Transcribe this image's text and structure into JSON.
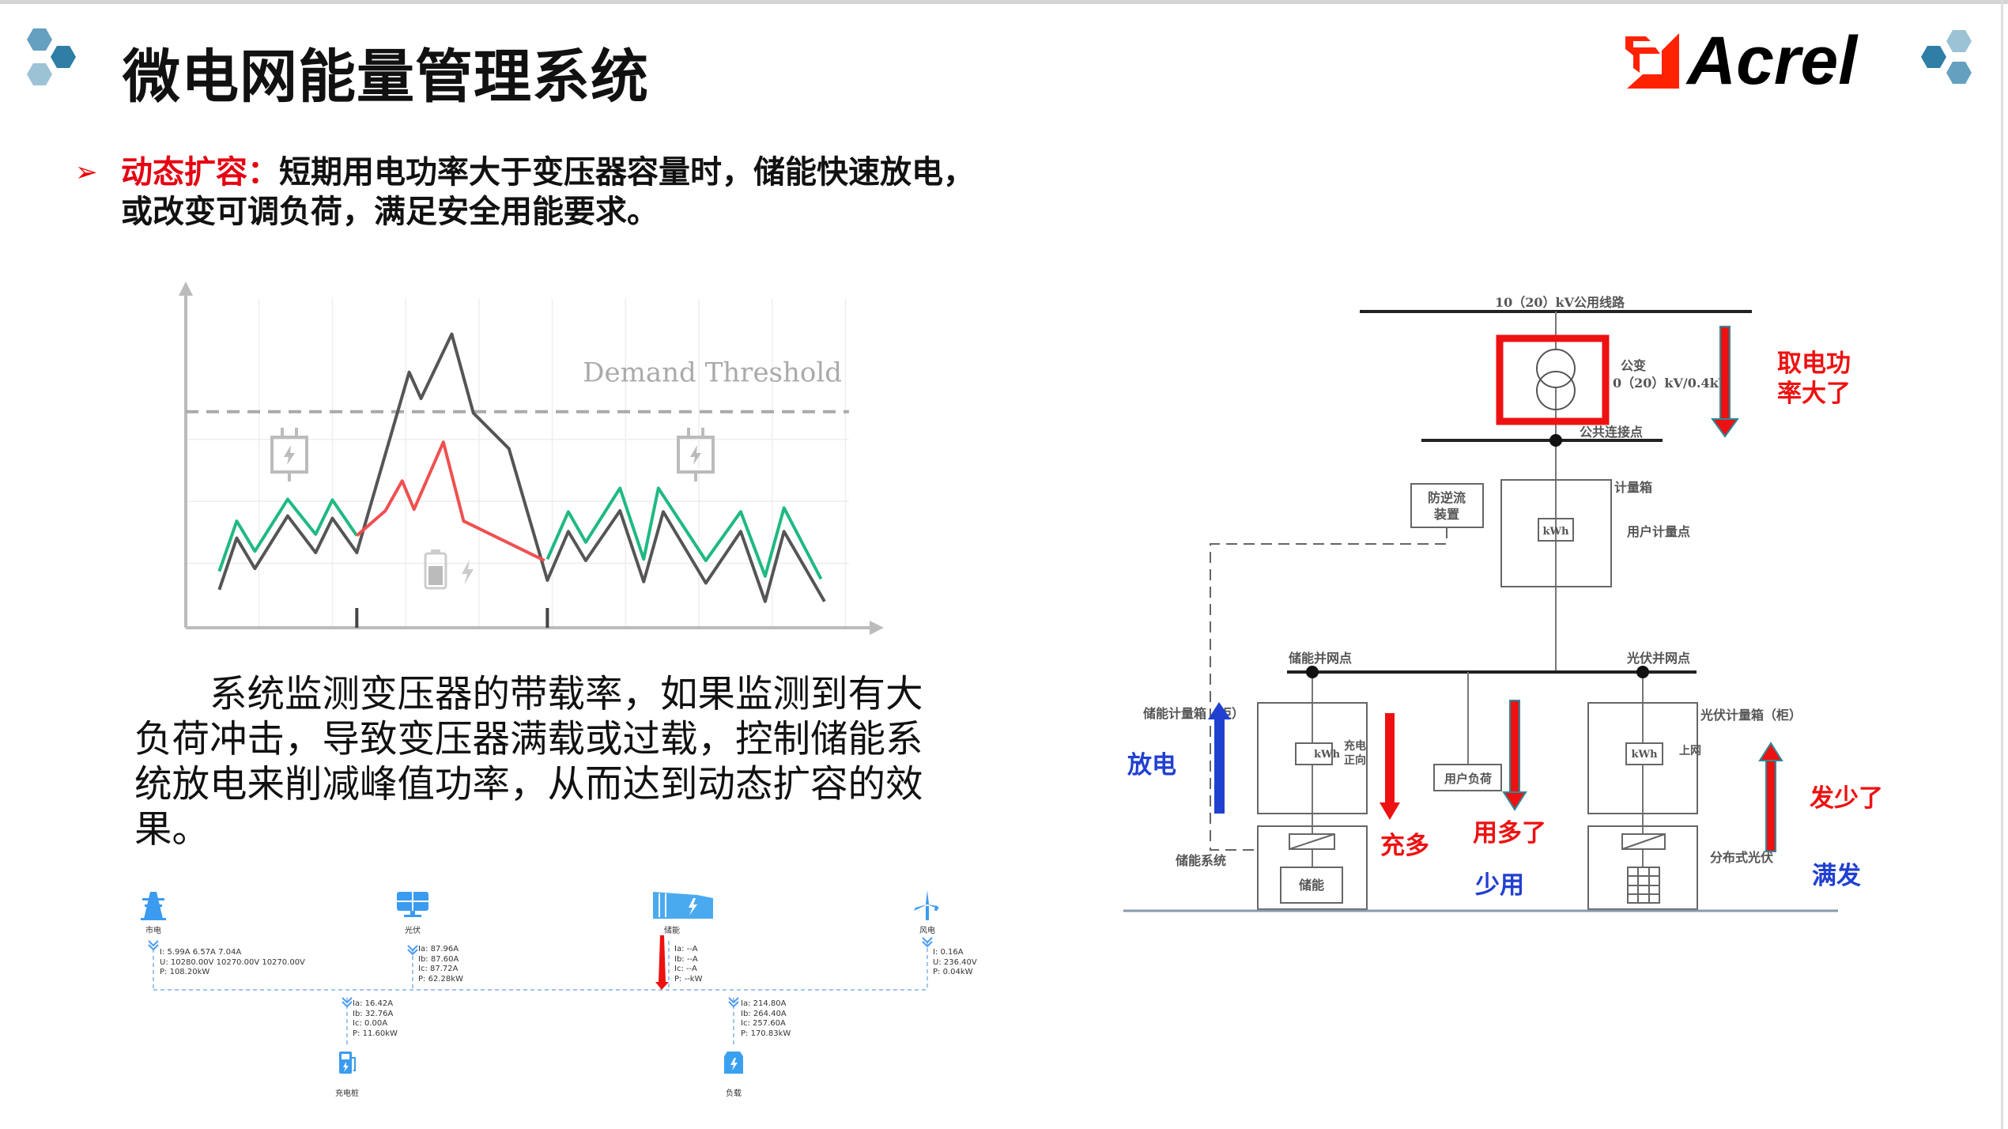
{
  "header": {
    "title": "微电网能量管理系统",
    "logo_text": "Acrel",
    "accent_colors": {
      "hex_dark": "#2e7ea6",
      "hex_mid": "#64a0bf",
      "hex_light": "#9cc2d6",
      "logo_red": "#ff2200"
    }
  },
  "bullet": {
    "icon": "arrow-right-icon",
    "key": "动态扩容：",
    "line1": "短期用电功率大于变压器容量时，储能快速放电，",
    "line2": "或改变可调负荷，满足安全用能要求。"
  },
  "chart_data": {
    "type": "line",
    "title": "",
    "xlabel": "",
    "ylabel": "",
    "xlim": [
      0,
      100
    ],
    "ylim": [
      0,
      100
    ],
    "grid": true,
    "threshold": {
      "label": "Demand Threshold",
      "value": 62.4
    },
    "markers_x": [
      24.5,
      51.8
    ],
    "series": [
      {
        "color": "#555555",
        "points": [
          [
            4.8,
            11.0
          ],
          [
            7.3,
            25.9
          ],
          [
            9.9,
            17.1
          ],
          [
            14.6,
            32.3
          ],
          [
            18.6,
            21.7
          ],
          [
            21.0,
            31.6
          ],
          [
            24.5,
            21.7
          ],
          [
            32.0,
            73.8
          ],
          [
            33.7,
            66.2
          ],
          [
            38.1,
            84.8
          ],
          [
            41.2,
            62.0
          ],
          [
            46.3,
            51.7
          ],
          [
            51.8,
            13.7
          ],
          [
            54.8,
            27.8
          ],
          [
            57.3,
            19.4
          ],
          [
            62.2,
            33.8
          ],
          [
            65.6,
            13.3
          ],
          [
            68.4,
            33.5
          ],
          [
            74.5,
            12.9
          ],
          [
            79.5,
            27.8
          ],
          [
            83.0,
            7.6
          ],
          [
            85.7,
            27.8
          ],
          [
            91.5,
            7.6
          ]
        ]
      },
      {
        "color": "#1fb981",
        "points": [
          [
            4.8,
            16.3
          ],
          [
            7.3,
            30.8
          ],
          [
            9.9,
            22.1
          ],
          [
            14.6,
            37.1
          ],
          [
            18.6,
            27.0
          ],
          [
            21.0,
            36.9
          ],
          [
            24.5,
            26.6
          ]
        ]
      },
      {
        "color": "#1fb981",
        "points": [
          [
            51.8,
            19.8
          ],
          [
            54.8,
            33.5
          ],
          [
            57.3,
            24.7
          ],
          [
            62.2,
            40.3
          ],
          [
            65.6,
            19.8
          ],
          [
            67.7,
            40.3
          ],
          [
            74.5,
            19.4
          ],
          [
            79.5,
            33.5
          ],
          [
            83.0,
            14.9
          ],
          [
            85.7,
            34.6
          ],
          [
            91.0,
            14.1
          ]
        ]
      },
      {
        "color": "#f05050",
        "points": [
          [
            24.5,
            26.6
          ],
          [
            28.6,
            33.8
          ],
          [
            31.0,
            42.4
          ],
          [
            32.7,
            34.2
          ],
          [
            36.9,
            53.6
          ],
          [
            39.8,
            30.8
          ],
          [
            51.4,
            19.4
          ]
        ]
      }
    ],
    "icons": [
      "plug-icon",
      "battery-icon",
      "plug-icon"
    ]
  },
  "paragraph": "系统监测变压器的带载率，如果监测到有大负荷冲击，导致变压器满载或过载，控制储能系统放电来削减峰值功率，从而达到动态扩容的效果。",
  "flow": {
    "grid": {
      "label": "市电",
      "icon": "power-tower-icon",
      "lines": [
        "I: 5.99A 6.57A 7.04A",
        "U: 10280.00V 10270.00V 10270.00V",
        "P: 108.20kW"
      ]
    },
    "pv": {
      "label": "光伏",
      "icon": "solar-panel-icon",
      "lines": [
        "Ia: 87.96A",
        "Ib: 87.60A",
        "Ic: 87.72A",
        "P: 62.28kW"
      ]
    },
    "storage": {
      "label": "储能",
      "icon": "storage-container-icon",
      "lines": [
        "Ia: --A",
        "Ib: --A",
        "Ic: --A",
        "P: --kW"
      ]
    },
    "wind": {
      "label": "风电",
      "icon": "wind-turbine-icon",
      "lines": [
        "I: 0.16A",
        "U: 236.40V",
        "P: 0.04kW"
      ]
    },
    "charger": {
      "label": "充电桩",
      "icon": "charging-pile-icon",
      "lines": [
        "Ia: 16.42A",
        "Ib: 32.76A",
        "Ic: 0.00A",
        "P: 11.60kW"
      ]
    },
    "load": {
      "label": "负载",
      "icon": "load-icon",
      "lines": [
        "Ia: 214.80A",
        "Ib: 264.40A",
        "Ic: 257.60A",
        "P: 170.83kW"
      ]
    }
  },
  "circuit": {
    "line_label": "10（20）kV公用线路",
    "transformer_label": "公变",
    "transformer_spec": "0（20）kV/0.4kV",
    "pcc_label": "公共连接点",
    "meter_box_label": "计量箱",
    "user_meter_label": "用户计量点",
    "anti_backflow_label": [
      "防逆流",
      "装置"
    ],
    "storage_grid_point": "储能并网点",
    "pv_grid_point": "光伏并网点",
    "storage_meter_label": "储能计量箱（柜）",
    "charge_direction": [
      "充电",
      "正向"
    ],
    "user_load_label": "用户负荷",
    "pv_meter_label": "光伏计量箱（柜）",
    "upgrid_label": "上网",
    "storage_system_label": "储能系统",
    "storage_label": "储能",
    "distributed_pv_label": "分布式光伏",
    "kwh": "kWh",
    "annotations": {
      "draw_power_large": [
        "取电功",
        "率大了"
      ],
      "discharge": "放电",
      "charge_more": "充多",
      "use_more": "用多了",
      "use_less": "少用",
      "gen_less": "发少了",
      "full_gen": "满发"
    },
    "colors": {
      "red": "#ee1111",
      "blue": "#2040d0"
    }
  }
}
